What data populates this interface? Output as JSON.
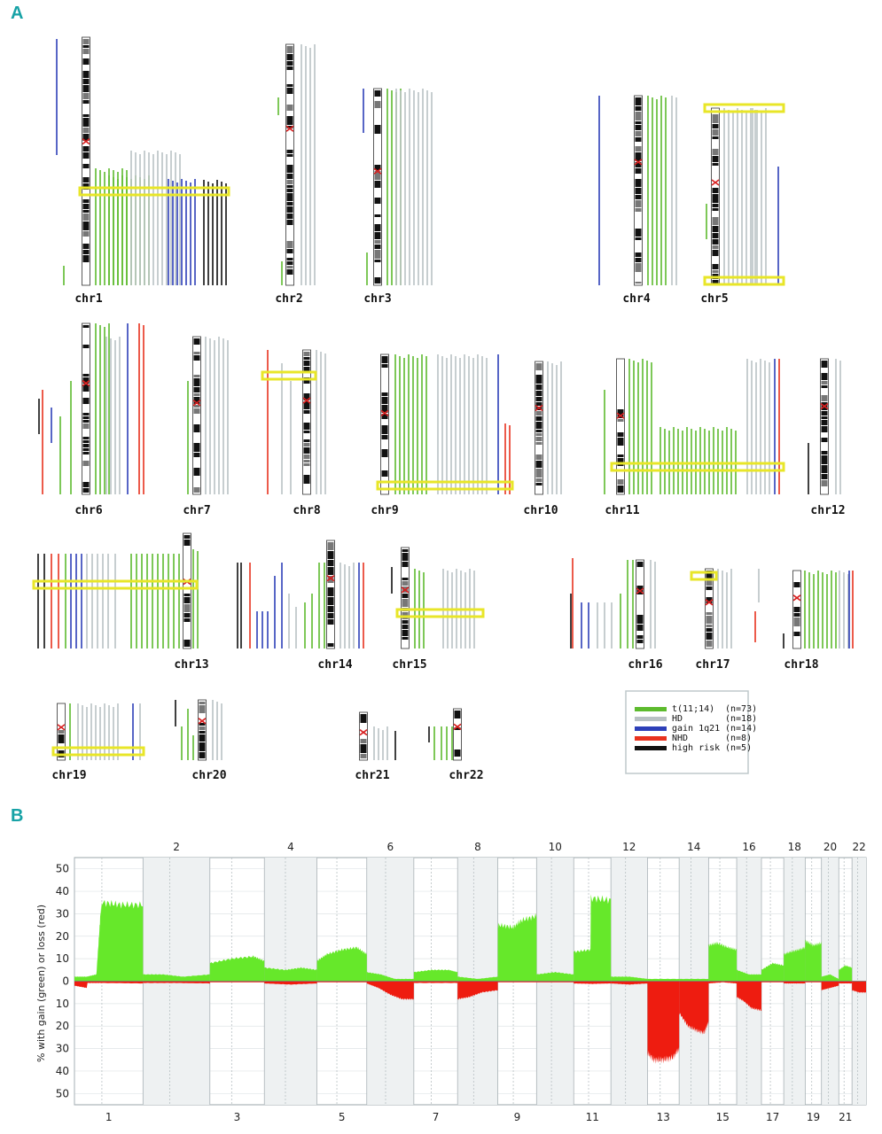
{
  "panel_labels": {
    "a": "A",
    "b": "B"
  },
  "colors": {
    "t1114": "#5dbb2e",
    "hd": "#b9c1c4",
    "gain1q21": "#2d3fb8",
    "nhd": "#e8321e",
    "highrisk": "#111111",
    "highlight": "#e8e628",
    "gain": "#66e82a",
    "loss": "#ee1c10",
    "band_dark": "#111111"
  },
  "chart_data": [
    {
      "type": "chromosome_ideogram_map",
      "panel": "A",
      "chromosomes": [
        {
          "label": "chr1",
          "region_highlighted": true
        },
        {
          "label": "chr2",
          "region_highlighted": false
        },
        {
          "label": "chr3",
          "region_highlighted": false
        },
        {
          "label": "chr4",
          "region_highlighted": false
        },
        {
          "label": "chr5",
          "region_highlighted": true
        },
        {
          "label": "chr6",
          "region_highlighted": false
        },
        {
          "label": "chr7",
          "region_highlighted": false
        },
        {
          "label": "chr8",
          "region_highlighted": true
        },
        {
          "label": "chr9",
          "region_highlighted": true
        },
        {
          "label": "chr10",
          "region_highlighted": false
        },
        {
          "label": "chr11",
          "region_highlighted": true
        },
        {
          "label": "chr12",
          "region_highlighted": false
        },
        {
          "label": "chr13",
          "region_highlighted": true
        },
        {
          "label": "chr14",
          "region_highlighted": false
        },
        {
          "label": "chr15",
          "region_highlighted": true
        },
        {
          "label": "chr16",
          "region_highlighted": false
        },
        {
          "label": "chr17",
          "region_highlighted": true
        },
        {
          "label": "chr18",
          "region_highlighted": false
        },
        {
          "label": "chr19",
          "region_highlighted": true
        },
        {
          "label": "chr20",
          "region_highlighted": false
        },
        {
          "label": "chr21",
          "region_highlighted": false
        },
        {
          "label": "chr22",
          "region_highlighted": false
        }
      ],
      "legend": [
        {
          "label": "t(11;14)",
          "n": "(n=73)",
          "color_key": "t1114"
        },
        {
          "label": "HD",
          "n": "(n=18)",
          "color_key": "hd"
        },
        {
          "label": "gain 1q21",
          "n": "(n=14)",
          "color_key": "gain1q21"
        },
        {
          "label": "NHD",
          "n": "(n=8)",
          "color_key": "nhd"
        },
        {
          "label": "high risk",
          "n": "(n=5)",
          "color_key": "highrisk"
        }
      ]
    },
    {
      "type": "area",
      "panel": "B",
      "ylabel": "% with gain (green) or loss (red)",
      "y_ticks_gain": [
        0,
        10,
        20,
        30,
        40,
        50
      ],
      "y_ticks_loss": [
        10,
        20,
        30,
        40,
        50
      ],
      "ylim": [
        -55,
        55
      ],
      "chromosomes": [
        "1",
        "2",
        "3",
        "4",
        "5",
        "6",
        "7",
        "8",
        "9",
        "10",
        "11",
        "12",
        "13",
        "14",
        "15",
        "16",
        "17",
        "18",
        "19",
        "20",
        "21",
        "22"
      ],
      "chr_lengths_mb": [
        249,
        243,
        198,
        191,
        181,
        171,
        159,
        146,
        141,
        135,
        135,
        133,
        115,
        107,
        102,
        90,
        81,
        78,
        59,
        63,
        48,
        51
      ],
      "top_labels": [
        "2",
        "4",
        "6",
        "8",
        "10",
        "12",
        "14",
        "16",
        "18",
        "20",
        "22"
      ],
      "bottom_labels": [
        "1",
        "3",
        "5",
        "7",
        "9",
        "11",
        "13",
        "15",
        "17",
        "19",
        "21"
      ],
      "gain_series": [
        {
          "chr": "1",
          "pos": [
            0,
            0.18,
            0.32,
            0.38,
            0.4,
            0.68,
            1.0
          ],
          "values": [
            2,
            2,
            3,
            30,
            35,
            34,
            34
          ]
        },
        {
          "chr": "2",
          "pos": [
            0,
            0.3,
            0.6,
            1.0
          ],
          "values": [
            3,
            3,
            2,
            3
          ]
        },
        {
          "chr": "3",
          "pos": [
            0,
            0.4,
            0.8,
            1.0
          ],
          "values": [
            8,
            10,
            11,
            9
          ]
        },
        {
          "chr": "4",
          "pos": [
            0,
            0.4,
            0.7,
            1.0
          ],
          "values": [
            6,
            5,
            6,
            5
          ]
        },
        {
          "chr": "5",
          "pos": [
            0,
            0.2,
            0.5,
            0.8,
            1.0
          ],
          "values": [
            9,
            12,
            14,
            15,
            12
          ]
        },
        {
          "chr": "6",
          "pos": [
            0,
            0.3,
            0.6,
            1.0
          ],
          "values": [
            4,
            3,
            1,
            1
          ]
        },
        {
          "chr": "7",
          "pos": [
            0,
            0.4,
            0.8,
            1.0
          ],
          "values": [
            4,
            5,
            5,
            4
          ]
        },
        {
          "chr": "8",
          "pos": [
            0,
            0.5,
            1.0
          ],
          "values": [
            2,
            1,
            2
          ]
        },
        {
          "chr": "9",
          "pos": [
            0,
            0.02,
            0.4,
            0.6,
            1.0
          ],
          "values": [
            24,
            25,
            24,
            27,
            29
          ]
        },
        {
          "chr": "10",
          "pos": [
            0,
            0.5,
            1.0
          ],
          "values": [
            3,
            4,
            3
          ]
        },
        {
          "chr": "11",
          "pos": [
            0,
            0.45,
            0.46,
            1.0
          ],
          "values": [
            13,
            14,
            37,
            36
          ]
        },
        {
          "chr": "12",
          "pos": [
            0,
            0.5,
            1.0
          ],
          "values": [
            2,
            2,
            1
          ]
        },
        {
          "chr": "13",
          "pos": [
            0,
            1.0
          ],
          "values": [
            1,
            1
          ]
        },
        {
          "chr": "14",
          "pos": [
            0,
            1.0
          ],
          "values": [
            1,
            1
          ]
        },
        {
          "chr": "15",
          "pos": [
            0,
            0.3,
            0.7,
            1.0
          ],
          "values": [
            16,
            17,
            15,
            14
          ]
        },
        {
          "chr": "16",
          "pos": [
            0,
            0.5,
            1.0
          ],
          "values": [
            5,
            3,
            3
          ]
        },
        {
          "chr": "17",
          "pos": [
            0,
            0.5,
            1.0
          ],
          "values": [
            5,
            8,
            7
          ]
        },
        {
          "chr": "18",
          "pos": [
            0,
            0.3,
            0.7,
            1.0
          ],
          "values": [
            12,
            13,
            14,
            15
          ]
        },
        {
          "chr": "19",
          "pos": [
            0,
            0.5,
            1.0
          ],
          "values": [
            18,
            16,
            17
          ]
        },
        {
          "chr": "20",
          "pos": [
            0,
            0.5,
            1.0
          ],
          "values": [
            2,
            3,
            1
          ]
        },
        {
          "chr": "21",
          "pos": [
            0,
            0.5,
            1.0
          ],
          "values": [
            5,
            7,
            6
          ]
        },
        {
          "chr": "22",
          "pos": [
            0,
            1.0
          ],
          "values": [
            0,
            0
          ]
        }
      ],
      "loss_series": [
        {
          "chr": "1",
          "pos": [
            0,
            0.18,
            0.19,
            0.4,
            1.0
          ],
          "values": [
            2,
            3,
            0.8,
            0.8,
            1
          ]
        },
        {
          "chr": "2",
          "pos": [
            0,
            0.5,
            1.0
          ],
          "values": [
            0.8,
            0.8,
            1
          ]
        },
        {
          "chr": "3",
          "pos": [
            0,
            1.0
          ],
          "values": [
            0.5,
            0.5
          ]
        },
        {
          "chr": "4",
          "pos": [
            0,
            0.5,
            1.0
          ],
          "values": [
            1,
            1.5,
            1
          ]
        },
        {
          "chr": "5",
          "pos": [
            0,
            1.0
          ],
          "values": [
            0.5,
            0.5
          ]
        },
        {
          "chr": "6",
          "pos": [
            0,
            0.25,
            0.5,
            0.75,
            1.0
          ],
          "values": [
            1,
            3,
            6,
            8,
            8
          ]
        },
        {
          "chr": "7",
          "pos": [
            0,
            1.0
          ],
          "values": [
            0.8,
            0.8
          ]
        },
        {
          "chr": "8",
          "pos": [
            0,
            0.3,
            0.6,
            1.0
          ],
          "values": [
            8,
            7,
            5,
            4
          ]
        },
        {
          "chr": "9",
          "pos": [
            0,
            1.0
          ],
          "values": [
            0.5,
            0.5
          ]
        },
        {
          "chr": "10",
          "pos": [
            0,
            1.0
          ],
          "values": [
            0.5,
            0.5
          ]
        },
        {
          "chr": "11",
          "pos": [
            0,
            0.5,
            1.0
          ],
          "values": [
            1,
            1.2,
            1
          ]
        },
        {
          "chr": "12",
          "pos": [
            0,
            0.5,
            1.0
          ],
          "values": [
            1,
            1.5,
            1
          ]
        },
        {
          "chr": "13",
          "pos": [
            0,
            0.2,
            0.5,
            0.8,
            1.0
          ],
          "values": [
            32,
            35,
            35,
            34,
            30
          ]
        },
        {
          "chr": "14",
          "pos": [
            0,
            0.3,
            0.6,
            0.85,
            1.0
          ],
          "values": [
            14,
            20,
            22,
            23,
            18
          ]
        },
        {
          "chr": "15",
          "pos": [
            0,
            0.5,
            1.0
          ],
          "values": [
            1,
            0.5,
            1
          ]
        },
        {
          "chr": "16",
          "pos": [
            0,
            0.3,
            0.6,
            1.0
          ],
          "values": [
            7,
            9,
            12,
            13
          ]
        },
        {
          "chr": "17",
          "pos": [
            0,
            1.0
          ],
          "values": [
            0.5,
            0.5
          ]
        },
        {
          "chr": "18",
          "pos": [
            0,
            0.5,
            1.0
          ],
          "values": [
            1,
            1,
            1
          ]
        },
        {
          "chr": "19",
          "pos": [
            0,
            1.0
          ],
          "values": [
            0.5,
            0.5
          ]
        },
        {
          "chr": "20",
          "pos": [
            0,
            0.5,
            1.0
          ],
          "values": [
            4,
            3,
            2
          ]
        },
        {
          "chr": "21",
          "pos": [
            0,
            0.5,
            1.0
          ],
          "values": [
            1,
            1,
            1
          ]
        },
        {
          "chr": "22",
          "pos": [
            0,
            0.5,
            1.0
          ],
          "values": [
            4,
            5,
            5
          ]
        }
      ]
    }
  ]
}
